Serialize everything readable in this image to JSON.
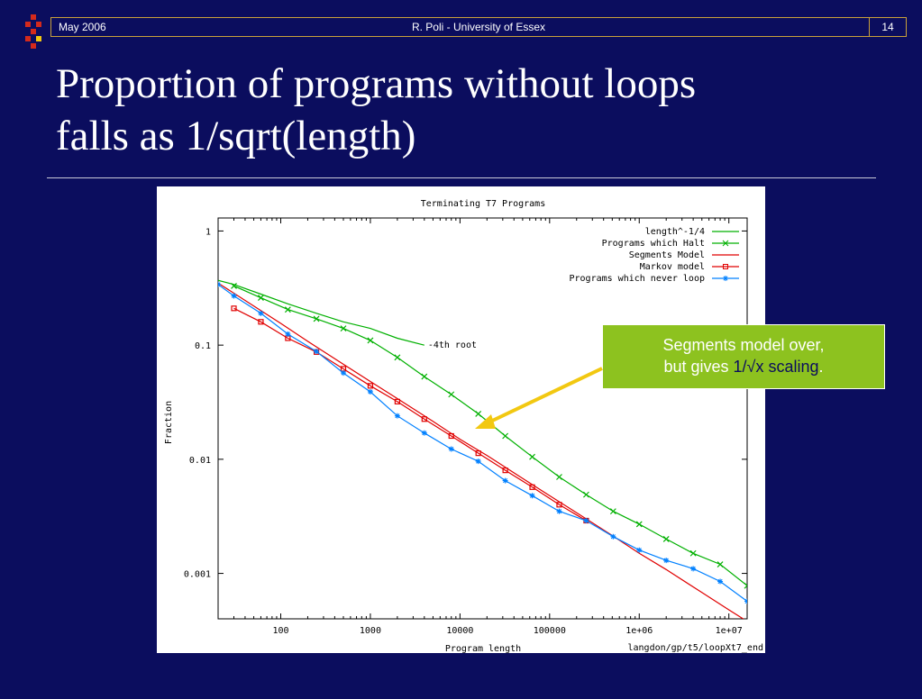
{
  "header": {
    "date": "May 2006",
    "author": "R. Poli - University of Essex",
    "page_number": "14"
  },
  "title": {
    "line1": "Proportion of  programs without loops",
    "line2": "falls as 1/sqrt(length)"
  },
  "callout": {
    "text_before": "Segments model over,",
    "text_mid": "but gives ",
    "highlight": "1/√x scaling",
    "text_after": "."
  },
  "colors": {
    "background": "#0b0d5e",
    "callout_bg": "#8dc21f",
    "arrow": "#f2c811",
    "accent": "#d42a1c"
  },
  "chart_data": {
    "type": "line",
    "title": "Terminating T7 Programs",
    "xlabel": "Program length",
    "ylabel": "Fraction",
    "x_scale": "log",
    "y_scale": "log",
    "xlim": [
      20,
      16000000
    ],
    "ylim": [
      0.0004,
      1.3
    ],
    "x_ticks": [
      100,
      1000,
      10000,
      100000,
      1000000,
      10000000
    ],
    "x_tick_labels": [
      "100",
      "1000",
      "10000",
      "100000",
      "1e+06",
      "1e+07"
    ],
    "y_ticks": [
      1,
      0.1,
      0.01,
      0.001
    ],
    "y_tick_labels": [
      "1",
      "0.1",
      "0.01",
      "0.001"
    ],
    "legend_position": "top-right",
    "annotation": {
      "text": "-4th root",
      "x": 4000,
      "y": 0.1
    },
    "footer_text": "langdon/gp/t5/loopXt7_end",
    "grid": false,
    "series": [
      {
        "name": "length^-1/4",
        "color": "#00b000",
        "marker": "none",
        "x": [
          20,
          30,
          60,
          120,
          250,
          500,
          1000,
          2000,
          4000
        ],
        "y": [
          0.37,
          0.34,
          0.28,
          0.23,
          0.19,
          0.16,
          0.14,
          0.115,
          0.1
        ]
      },
      {
        "name": "Programs which Halt",
        "color": "#00b000",
        "marker": "x",
        "x": [
          30,
          60,
          120,
          250,
          500,
          1000,
          2000,
          4000,
          8000,
          16000,
          32000,
          64000,
          128000,
          256000,
          512000,
          1000000,
          2000000,
          4000000,
          8000000,
          16000000
        ],
        "y": [
          0.33,
          0.26,
          0.205,
          0.17,
          0.14,
          0.11,
          0.078,
          0.053,
          0.037,
          0.025,
          0.016,
          0.0105,
          0.007,
          0.0049,
          0.0035,
          0.0027,
          0.002,
          0.0015,
          0.0012,
          0.00078
        ]
      },
      {
        "name": "Segments Model",
        "color": "#e00000",
        "marker": "none",
        "x": [
          20,
          50,
          100,
          200,
          500,
          1000,
          2000,
          5000,
          10000,
          20000,
          50000,
          100000,
          200000,
          500000,
          1000000,
          2000000,
          5000000,
          10000000,
          16000000
        ],
        "y": [
          0.35,
          0.22,
          0.155,
          0.108,
          0.068,
          0.048,
          0.034,
          0.0215,
          0.015,
          0.0108,
          0.0068,
          0.0048,
          0.0034,
          0.00215,
          0.0015,
          0.00108,
          0.00068,
          0.00048,
          0.00038
        ]
      },
      {
        "name": "Markov model",
        "color": "#e00000",
        "marker": "square",
        "x": [
          30,
          60,
          120,
          250,
          500,
          1000,
          2000,
          4000,
          8000,
          16000,
          32000,
          64000,
          128000,
          256000
        ],
        "y": [
          0.21,
          0.16,
          0.115,
          0.087,
          0.062,
          0.044,
          0.032,
          0.0225,
          0.016,
          0.0113,
          0.008,
          0.0057,
          0.004,
          0.0029
        ]
      },
      {
        "name": "Programs which never loop",
        "color": "#0080ff",
        "marker": "asterisk",
        "x": [
          20,
          30,
          60,
          120,
          250,
          500,
          1000,
          2000,
          4000,
          8000,
          16000,
          32000,
          64000,
          128000,
          256000,
          512000,
          1000000,
          2000000,
          4000000,
          8000000,
          16000000
        ],
        "y": [
          0.34,
          0.27,
          0.19,
          0.125,
          0.088,
          0.057,
          0.039,
          0.024,
          0.017,
          0.0123,
          0.0096,
          0.0065,
          0.0048,
          0.0035,
          0.0029,
          0.0021,
          0.0016,
          0.0013,
          0.0011,
          0.00085,
          0.00057
        ]
      }
    ]
  }
}
